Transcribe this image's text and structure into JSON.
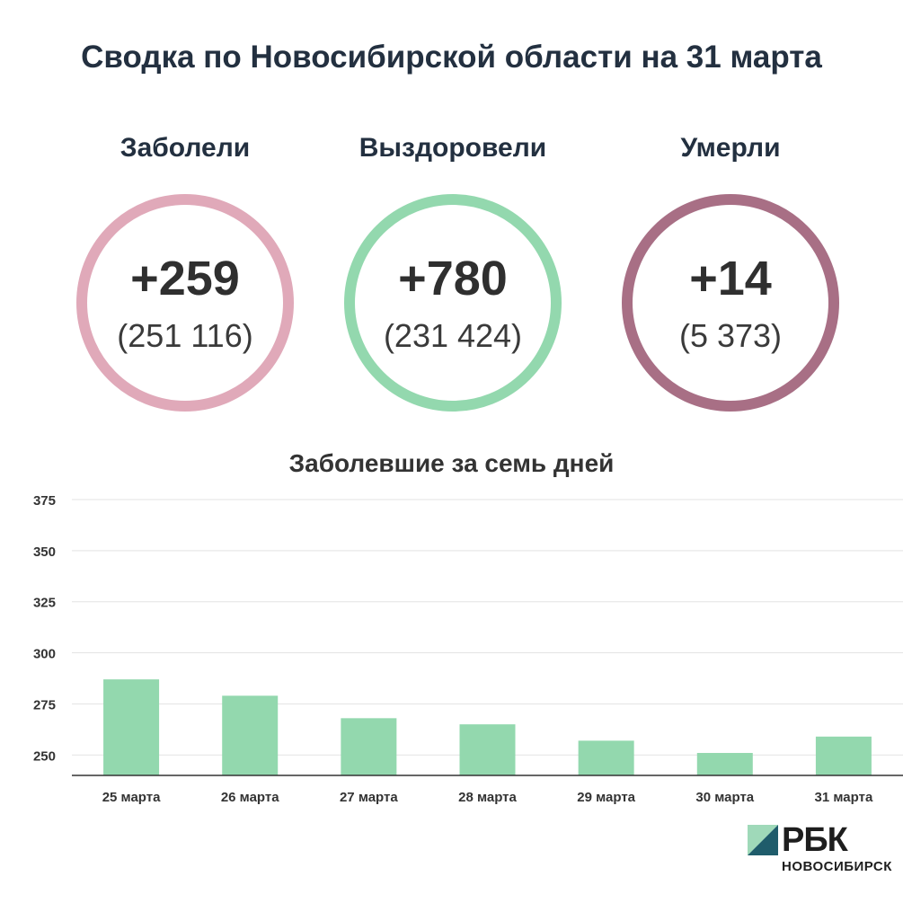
{
  "title": "Сводка по Новосибирской области на 31 марта",
  "stats": [
    {
      "label": "Заболели",
      "delta": "+259",
      "total": "(251 116)",
      "color": "#e0a9b9"
    },
    {
      "label": "Выздоровели",
      "delta": "+780",
      "total": "(231 424)",
      "color": "#93d8ae"
    },
    {
      "label": "Умерли",
      "delta": "+14",
      "total": "(5 373)",
      "color": "#a86f85"
    }
  ],
  "chart_data": {
    "type": "bar",
    "title": "Заболевшие за семь дней",
    "categories": [
      "25 марта",
      "26 марта",
      "27 марта",
      "28 марта",
      "29 марта",
      "30 марта",
      "31 марта"
    ],
    "values": [
      287,
      279,
      268,
      265,
      257,
      251,
      259
    ],
    "ylim": [
      240,
      375
    ],
    "yticks": [
      250,
      275,
      300,
      325,
      350,
      375
    ],
    "grid": true,
    "bar_color": "#93d8ae"
  },
  "logo": {
    "name": "РБК",
    "sub": "НОВОСИБИРСК",
    "mark_colors": [
      "#9fd9b9",
      "#1f5c6b"
    ]
  }
}
